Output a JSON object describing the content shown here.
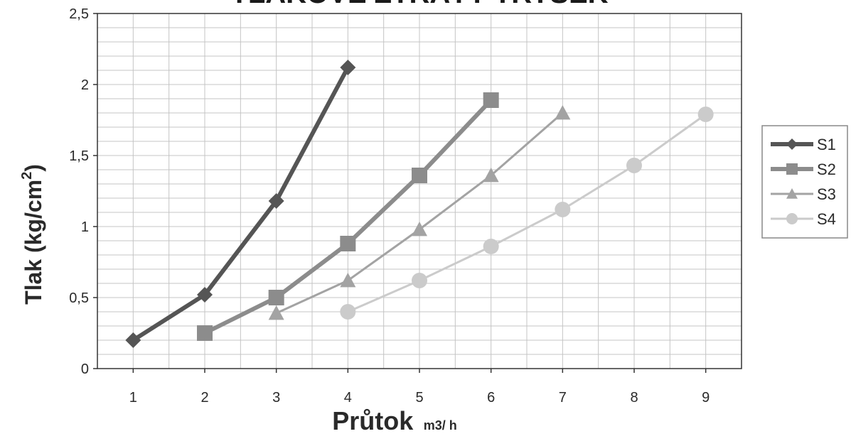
{
  "chart_data": {
    "type": "line",
    "title": "TLAKOVÉ ZTRÁTY TRYSEK",
    "xlabel": "Průtok",
    "xlabel_unit": "m3/ h",
    "ylabel": "Tlak (kg/cm",
    "ylabel_superscript": "2",
    "ylabel_close": ")",
    "xlim": [
      0.5,
      9.5
    ],
    "ylim": [
      0,
      2.5
    ],
    "x_ticks": [
      1,
      2,
      3,
      4,
      5,
      6,
      7,
      8,
      9
    ],
    "x_tick_labels": [
      "1",
      "2",
      "3",
      "4",
      "5",
      "6",
      "7",
      "8",
      "9"
    ],
    "y_ticks": [
      0,
      0.5,
      1,
      1.5,
      2,
      2.5
    ],
    "y_tick_labels": [
      "0",
      "0,5",
      "1",
      "1,5",
      "2",
      "2,5"
    ],
    "grid": true,
    "legend_position": "right",
    "series": [
      {
        "name": "S1",
        "marker": "diamond",
        "color": "#555555",
        "x": [
          1,
          2,
          3,
          4
        ],
        "y": [
          0.2,
          0.52,
          1.18,
          2.12
        ]
      },
      {
        "name": "S2",
        "marker": "square",
        "color": "#8c8c8c",
        "x": [
          2,
          3,
          4,
          5,
          6
        ],
        "y": [
          0.25,
          0.5,
          0.88,
          1.36,
          1.89
        ]
      },
      {
        "name": "S3",
        "marker": "triangle",
        "color": "#a3a3a3",
        "x": [
          3,
          4,
          5,
          6,
          7
        ],
        "y": [
          0.39,
          0.62,
          0.98,
          1.36,
          1.8
        ]
      },
      {
        "name": "S4",
        "marker": "circle",
        "color": "#cbcbcb",
        "x": [
          4,
          5,
          6,
          7,
          8,
          9
        ],
        "y": [
          0.4,
          0.62,
          0.86,
          1.12,
          1.43,
          1.79
        ]
      }
    ]
  }
}
